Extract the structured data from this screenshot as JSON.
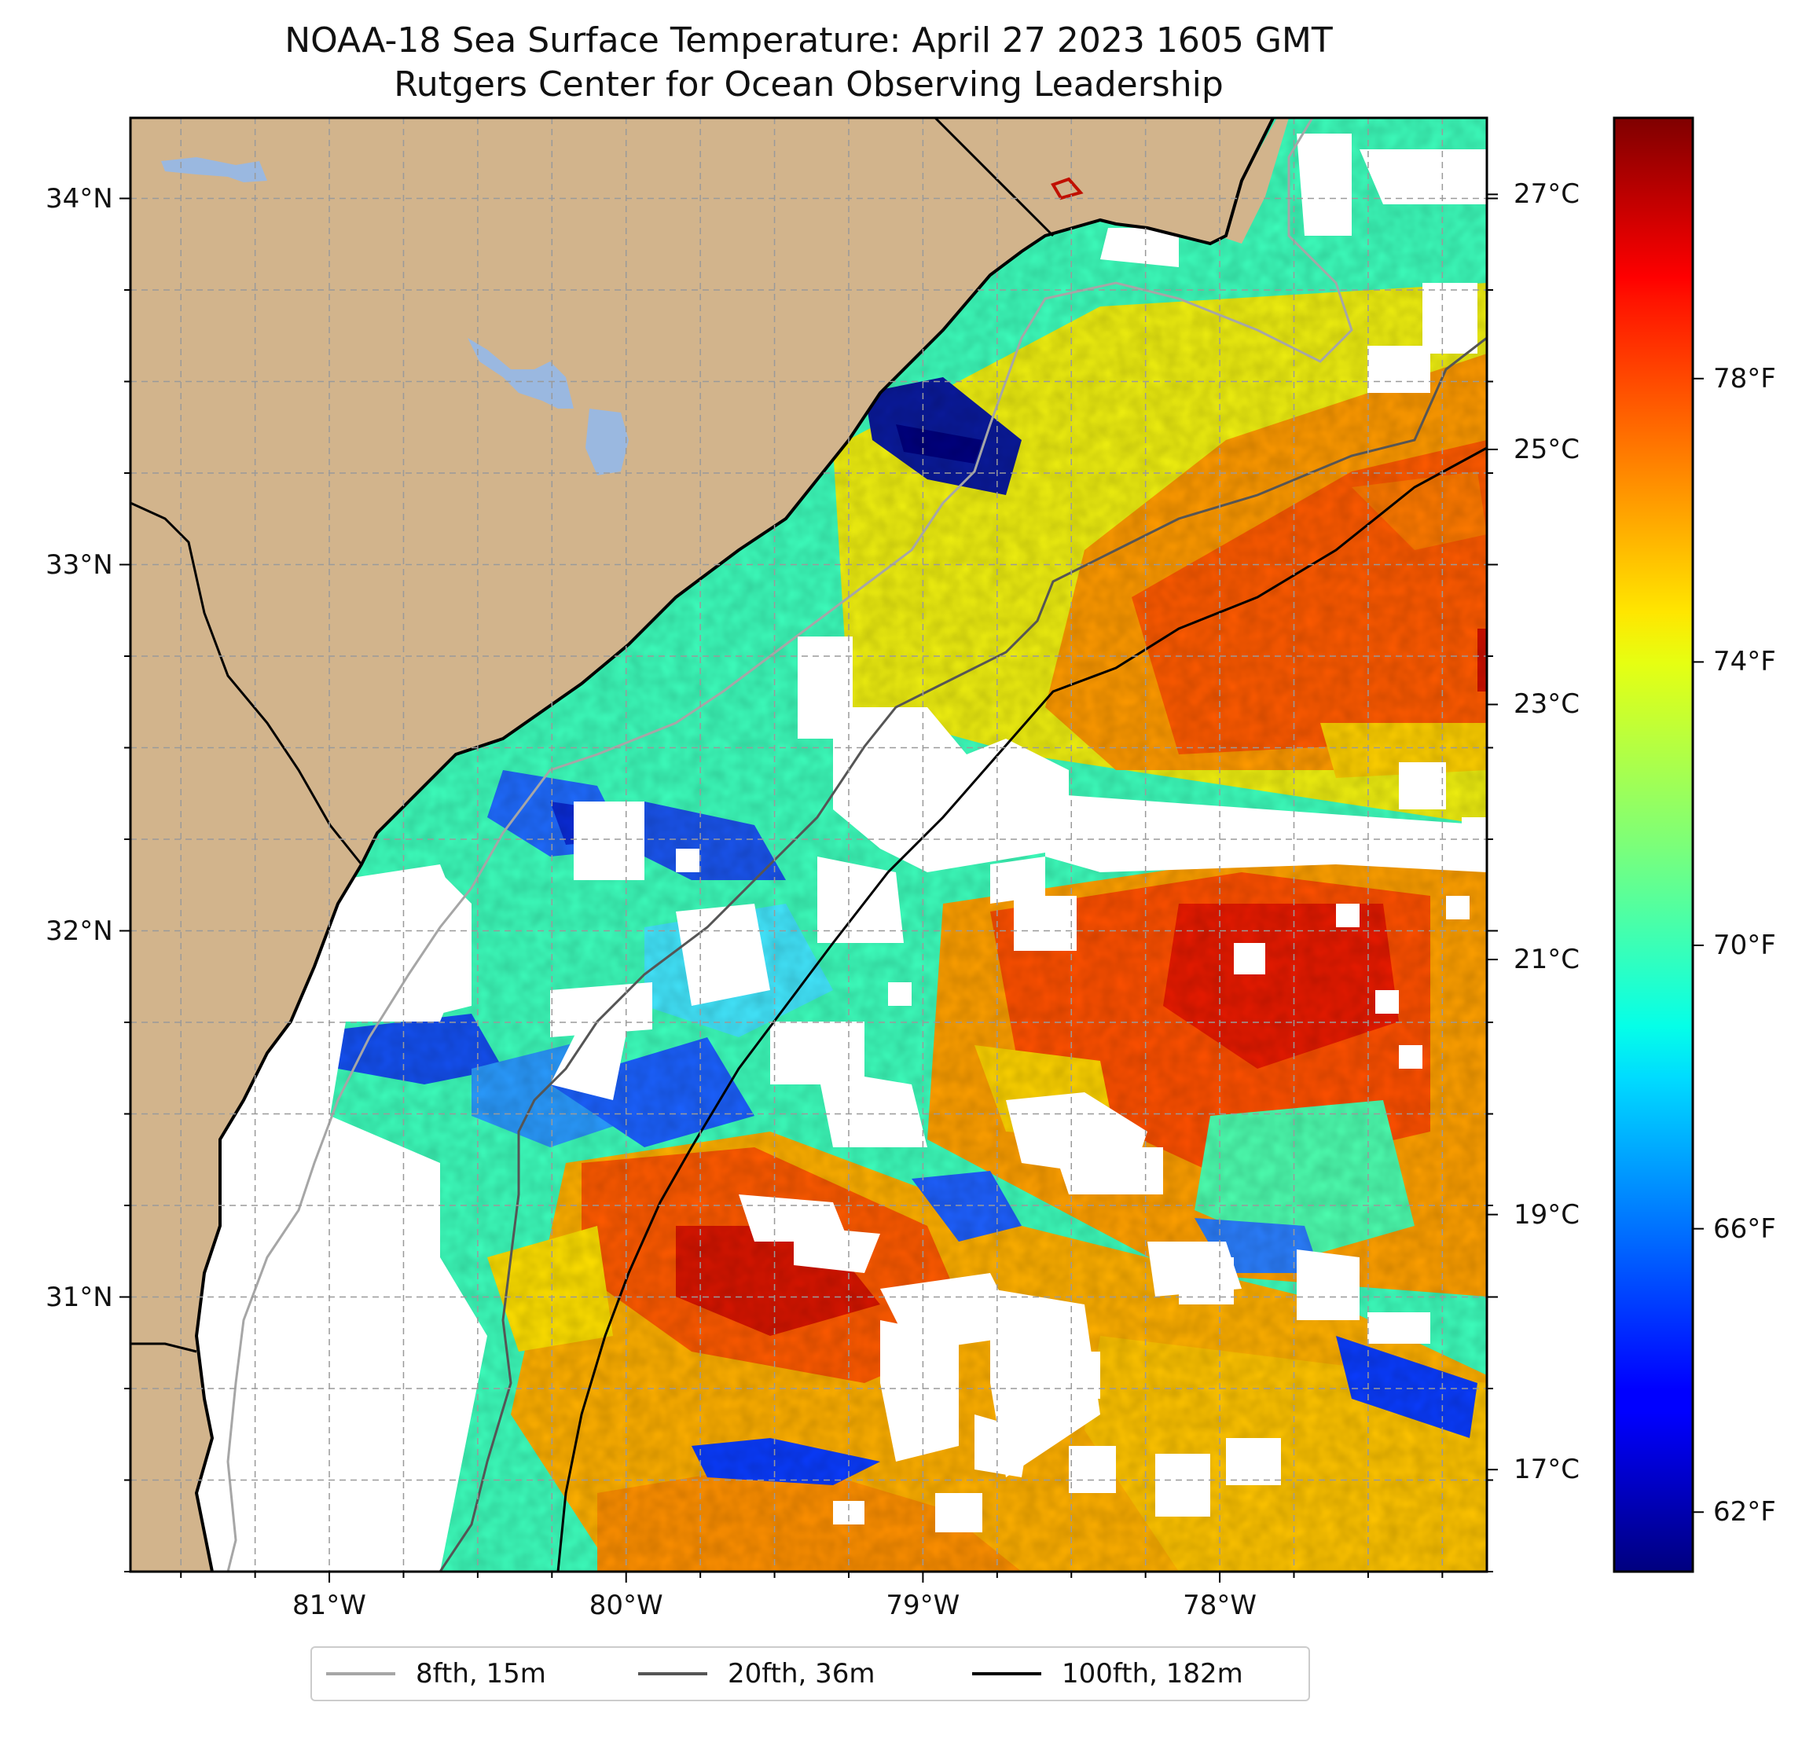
{
  "header": {
    "title": "NOAA-18 Sea Surface Temperature: April 27 2023 1605 GMT",
    "subtitle": "Rutgers Center for Ocean Observing Leadership"
  },
  "map": {
    "lon_range": [
      -81.67,
      -77.1
    ],
    "lat_range": [
      30.25,
      34.22
    ],
    "lon_ticks": [
      {
        "value": -81,
        "label": "81°W"
      },
      {
        "value": -80,
        "label": "80°W"
      },
      {
        "value": -79,
        "label": "79°W"
      },
      {
        "value": -78,
        "label": "78°W"
      }
    ],
    "lat_ticks": [
      {
        "value": 34,
        "label": "34°N"
      },
      {
        "value": 33,
        "label": "33°N"
      },
      {
        "value": 32,
        "label": "32°N"
      },
      {
        "value": 31,
        "label": "31°N"
      }
    ],
    "colors": {
      "land": "#d2b48c",
      "lake": "#9ab8e0",
      "no_data": "#ffffff",
      "isobath_8fth": "#a6a6a6",
      "isobath_20fth": "#555555",
      "isobath_100fth": "#000000"
    }
  },
  "colorbar": {
    "colormap": "jet",
    "celsius_range": [
      16.2,
      27.6
    ],
    "celsius_ticks": [
      {
        "value": 17,
        "label": "17°C"
      },
      {
        "value": 19,
        "label": "19°C"
      },
      {
        "value": 21,
        "label": "21°C"
      },
      {
        "value": 23,
        "label": "23°C"
      },
      {
        "value": 25,
        "label": "25°C"
      },
      {
        "value": 27,
        "label": "27°C"
      }
    ],
    "fahrenheit_ticks": [
      {
        "value": 62,
        "label": "62°F"
      },
      {
        "value": 66,
        "label": "66°F"
      },
      {
        "value": 70,
        "label": "70°F"
      },
      {
        "value": 74,
        "label": "74°F"
      },
      {
        "value": 78,
        "label": "78°F"
      }
    ]
  },
  "legend": {
    "items": [
      {
        "label": "8fth, 15m",
        "color": "#a6a6a6"
      },
      {
        "label": "20fth, 36m",
        "color": "#555555"
      },
      {
        "label": "100fth, 182m",
        "color": "#000000"
      }
    ]
  }
}
